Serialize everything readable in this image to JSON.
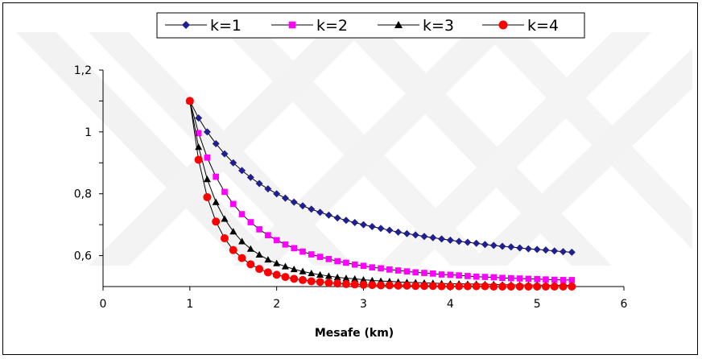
{
  "chart_data": {
    "type": "line",
    "xlabel": "Mesafe (km)",
    "ylabel": "",
    "xlim": [
      0,
      6
    ],
    "ylim": [
      0.5,
      1.2
    ],
    "x_ticks": [
      "0",
      "1",
      "2",
      "3",
      "4",
      "5",
      "6"
    ],
    "y_ticks": [
      "0,6",
      "0,8",
      "1",
      "1,2"
    ],
    "legend_position": "top",
    "grid": false,
    "x": [
      1,
      1.1,
      1.2,
      1.3,
      1.4,
      1.5,
      1.6,
      1.7,
      1.8,
      1.9,
      2,
      2.1,
      2.2,
      2.3,
      2.4,
      2.5,
      2.6,
      2.7,
      2.8,
      2.9,
      3,
      3.1,
      3.2,
      3.3,
      3.4,
      3.5,
      3.6,
      3.7,
      3.8,
      3.9,
      4,
      4.1,
      4.2,
      4.3,
      4.4,
      4.5,
      4.6,
      4.7,
      4.8,
      4.9,
      5,
      5.1,
      5.2,
      5.3,
      5.4
    ],
    "series": [
      {
        "name": "k=1",
        "color": "#1f1f8f",
        "marker": "diamond",
        "values": [
          1.1,
          1.045,
          1.0,
          0.962,
          0.929,
          0.9,
          0.875,
          0.853,
          0.833,
          0.816,
          0.8,
          0.786,
          0.773,
          0.761,
          0.75,
          0.74,
          0.731,
          0.722,
          0.714,
          0.707,
          0.7,
          0.694,
          0.688,
          0.682,
          0.676,
          0.671,
          0.667,
          0.662,
          0.658,
          0.654,
          0.65,
          0.646,
          0.643,
          0.64,
          0.636,
          0.633,
          0.63,
          0.628,
          0.625,
          0.622,
          0.62,
          0.618,
          0.615,
          0.613,
          0.611
        ]
      },
      {
        "name": "k=2",
        "color": "#ff00ff",
        "marker": "square",
        "values": [
          1.1,
          0.996,
          0.917,
          0.855,
          0.806,
          0.767,
          0.734,
          0.708,
          0.685,
          0.666,
          0.65,
          0.636,
          0.624,
          0.613,
          0.604,
          0.596,
          0.589,
          0.582,
          0.577,
          0.571,
          0.567,
          0.562,
          0.559,
          0.555,
          0.552,
          0.549,
          0.546,
          0.544,
          0.542,
          0.539,
          0.538,
          0.536,
          0.534,
          0.532,
          0.531,
          0.53,
          0.528,
          0.527,
          0.526,
          0.525,
          0.524,
          0.523,
          0.522,
          0.521,
          0.521
        ]
      },
      {
        "name": "k=3",
        "color": "#000000",
        "marker": "triangle",
        "values": [
          1.1,
          0.951,
          0.847,
          0.773,
          0.719,
          0.678,
          0.646,
          0.622,
          0.603,
          0.587,
          0.575,
          0.565,
          0.556,
          0.549,
          0.543,
          0.538,
          0.534,
          0.53,
          0.527,
          0.525,
          0.522,
          0.52,
          0.518,
          0.517,
          0.515,
          0.514,
          0.513,
          0.512,
          0.511,
          0.51,
          0.509,
          0.509,
          0.508,
          0.508,
          0.507,
          0.507,
          0.506,
          0.506,
          0.505,
          0.505,
          0.505,
          0.504,
          0.504,
          0.504,
          0.504
        ]
      },
      {
        "name": "k=4",
        "color": "#ff0000",
        "marker": "circle",
        "values": [
          1.1,
          0.91,
          0.789,
          0.71,
          0.656,
          0.618,
          0.592,
          0.572,
          0.557,
          0.546,
          0.538,
          0.531,
          0.525,
          0.521,
          0.517,
          0.515,
          0.512,
          0.51,
          0.508,
          0.507,
          0.506,
          0.505,
          0.504,
          0.504,
          0.503,
          0.503,
          0.502,
          0.502,
          0.502,
          0.501,
          0.501,
          0.501,
          0.501,
          0.501,
          0.501,
          0.5,
          0.5,
          0.5,
          0.5,
          0.5,
          0.5,
          0.5,
          0.5,
          0.5,
          0.5
        ]
      }
    ]
  }
}
